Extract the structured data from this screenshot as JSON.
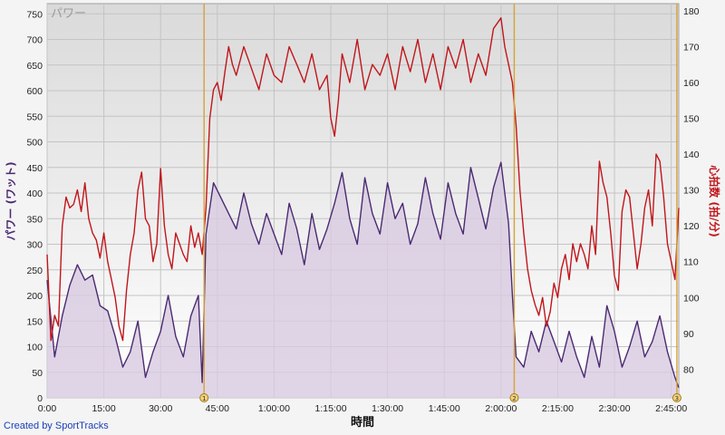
{
  "chart_data": {
    "type": "line",
    "title": "パワー",
    "xlabel": "時間",
    "ylabel_left": "パワー (ワット)",
    "ylabel_right": "心拍数 (拍/分)",
    "x_unit": "minutes",
    "xlim": [
      0,
      167
    ],
    "ylim_left": [
      0,
      770
    ],
    "ylim_right": [
      72,
      182
    ],
    "x_tick_labels": [
      "0:00",
      "15:00",
      "30:00",
      "45:00",
      "1:00:00",
      "1:15:00",
      "1:30:00",
      "1:45:00",
      "2:00:00",
      "2:15:00",
      "2:30:00",
      "2:45:00"
    ],
    "x_tick_values": [
      0,
      15,
      30,
      45,
      60,
      75,
      90,
      105,
      120,
      135,
      150,
      165
    ],
    "y_left_ticks": [
      0,
      50,
      100,
      150,
      200,
      250,
      300,
      350,
      400,
      450,
      500,
      550,
      600,
      650,
      700,
      750
    ],
    "y_right_ticks": [
      80,
      90,
      100,
      110,
      120,
      130,
      140,
      150,
      160,
      170,
      180
    ],
    "grid": true,
    "markers": [
      {
        "label": "1",
        "x": 41.5
      },
      {
        "label": "2",
        "x": 123.5
      },
      {
        "label": "3",
        "x": 166.5
      }
    ],
    "series": [
      {
        "name": "パワー",
        "axis": "left",
        "color": "#4b2a72",
        "fill": "#d8cbe0",
        "x": [
          0,
          2,
          4,
          6,
          8,
          10,
          12,
          14,
          16,
          18,
          20,
          22,
          24,
          26,
          28,
          30,
          32,
          34,
          36,
          38,
          40,
          41,
          42,
          44,
          46,
          48,
          50,
          52,
          54,
          56,
          58,
          60,
          62,
          64,
          66,
          68,
          70,
          72,
          74,
          76,
          78,
          80,
          82,
          84,
          86,
          88,
          90,
          92,
          94,
          96,
          98,
          100,
          102,
          104,
          106,
          108,
          110,
          112,
          114,
          116,
          118,
          120,
          122,
          123,
          124,
          126,
          128,
          130,
          132,
          134,
          136,
          138,
          140,
          142,
          144,
          146,
          148,
          150,
          152,
          154,
          156,
          158,
          160,
          162,
          164,
          166,
          167
        ],
        "y": [
          230,
          80,
          160,
          220,
          260,
          230,
          240,
          180,
          170,
          120,
          60,
          90,
          150,
          40,
          90,
          130,
          200,
          120,
          80,
          160,
          200,
          30,
          320,
          420,
          390,
          360,
          330,
          400,
          340,
          300,
          360,
          320,
          280,
          380,
          330,
          260,
          360,
          290,
          330,
          380,
          440,
          350,
          300,
          430,
          360,
          320,
          420,
          350,
          380,
          300,
          340,
          430,
          360,
          310,
          420,
          360,
          320,
          450,
          390,
          330,
          410,
          460,
          340,
          200,
          80,
          60,
          130,
          90,
          150,
          110,
          70,
          130,
          80,
          40,
          120,
          60,
          180,
          130,
          60,
          100,
          150,
          80,
          110,
          160,
          90,
          40,
          20
        ]
      },
      {
        "name": "心拍数",
        "axis": "right",
        "color": "#c0161b",
        "x": [
          0,
          1,
          2,
          3,
          4,
          5,
          6,
          7,
          8,
          9,
          10,
          11,
          12,
          13,
          14,
          15,
          16,
          17,
          18,
          19,
          20,
          21,
          22,
          23,
          24,
          25,
          26,
          27,
          28,
          29,
          30,
          31,
          32,
          33,
          34,
          35,
          36,
          37,
          38,
          39,
          40,
          41,
          42,
          43,
          44,
          45,
          46,
          47,
          48,
          49,
          50,
          52,
          54,
          56,
          58,
          60,
          62,
          64,
          66,
          68,
          70,
          72,
          74,
          75,
          76,
          77,
          78,
          80,
          82,
          84,
          86,
          88,
          90,
          92,
          94,
          96,
          98,
          100,
          102,
          104,
          106,
          108,
          110,
          112,
          114,
          116,
          118,
          120,
          121,
          122,
          123,
          124,
          125,
          126,
          127,
          128,
          129,
          130,
          131,
          132,
          133,
          134,
          135,
          136,
          137,
          138,
          139,
          140,
          141,
          142,
          143,
          144,
          145,
          146,
          147,
          148,
          149,
          150,
          151,
          152,
          153,
          154,
          155,
          156,
          157,
          158,
          159,
          160,
          161,
          162,
          163,
          164,
          165,
          166,
          167
        ],
        "y": [
          112,
          88,
          95,
          92,
          120,
          128,
          125,
          126,
          130,
          124,
          132,
          122,
          118,
          116,
          111,
          118,
          110,
          105,
          100,
          92,
          88,
          102,
          112,
          118,
          130,
          135,
          122,
          120,
          110,
          115,
          136,
          120,
          112,
          108,
          118,
          115,
          112,
          110,
          120,
          114,
          118,
          112,
          125,
          150,
          158,
          160,
          155,
          163,
          170,
          165,
          162,
          170,
          164,
          158,
          168,
          162,
          160,
          170,
          165,
          160,
          168,
          158,
          162,
          150,
          145,
          155,
          168,
          160,
          172,
          158,
          165,
          162,
          168,
          158,
          170,
          163,
          172,
          160,
          168,
          158,
          170,
          164,
          172,
          160,
          168,
          162,
          175,
          178,
          170,
          165,
          160,
          148,
          130,
          118,
          108,
          102,
          98,
          95,
          100,
          92,
          96,
          104,
          100,
          108,
          112,
          105,
          115,
          110,
          115,
          112,
          108,
          120,
          112,
          138,
          132,
          128,
          118,
          106,
          102,
          124,
          130,
          128,
          118,
          108,
          115,
          125,
          130,
          120,
          140,
          138,
          128,
          115,
          110,
          105,
          125
        ]
      }
    ]
  },
  "footer": {
    "credit": "Created by SportTracks"
  }
}
